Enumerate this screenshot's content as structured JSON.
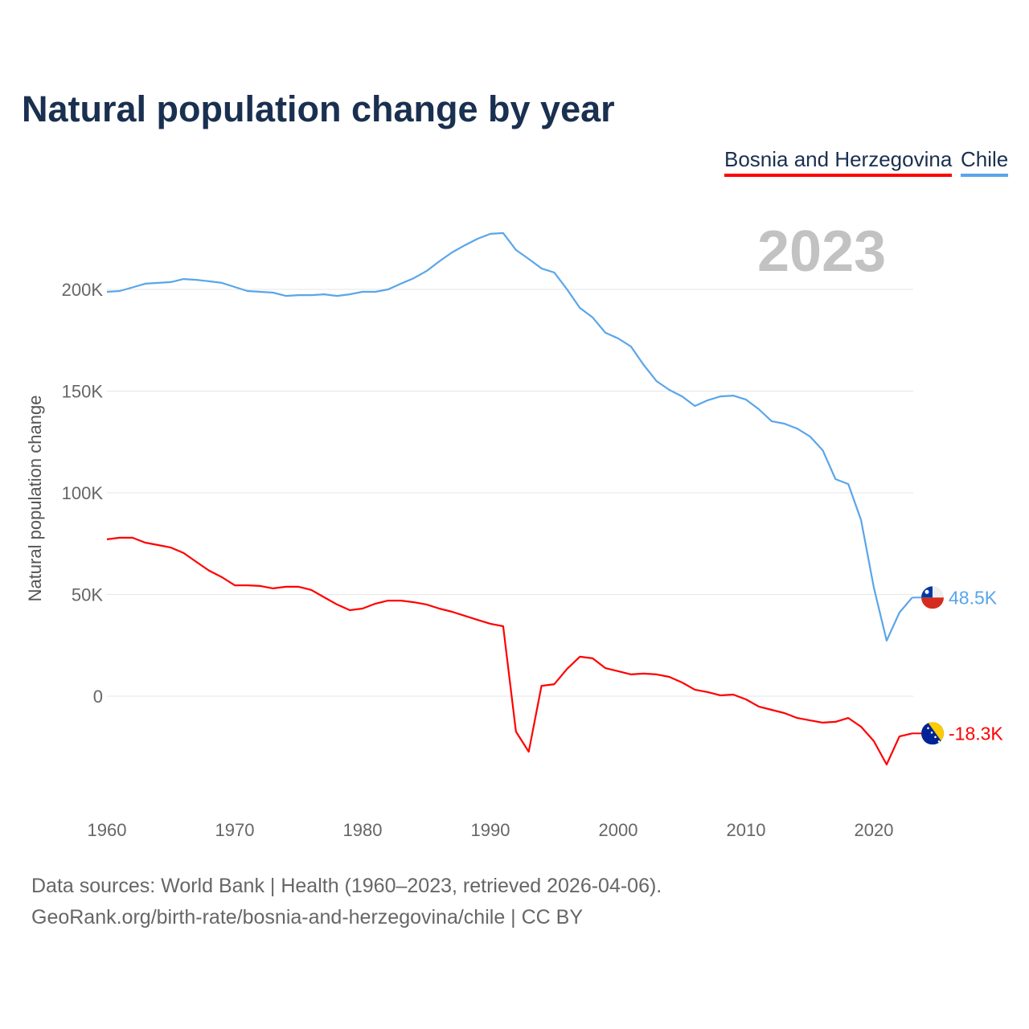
{
  "chart_data": {
    "type": "line",
    "title": "Natural population change by year",
    "ylabel": "Natural population change",
    "xlabel": "",
    "current_year": "2023",
    "x": [
      1960,
      1961,
      1962,
      1963,
      1964,
      1965,
      1966,
      1967,
      1968,
      1969,
      1970,
      1971,
      1972,
      1973,
      1974,
      1975,
      1976,
      1977,
      1978,
      1979,
      1980,
      1981,
      1982,
      1983,
      1984,
      1985,
      1986,
      1987,
      1988,
      1989,
      1990,
      1991,
      1992,
      1993,
      1994,
      1995,
      1996,
      1997,
      1998,
      1999,
      2000,
      2001,
      2002,
      2003,
      2004,
      2005,
      2006,
      2007,
      2008,
      2009,
      2010,
      2011,
      2012,
      2013,
      2014,
      2015,
      2016,
      2017,
      2018,
      2019,
      2020,
      2021,
      2022,
      2023
    ],
    "series": [
      {
        "name": "Bosnia and Herzegovina",
        "color": "#ff0000",
        "end_label": "-18.3K",
        "values": [
          77100,
          77900,
          77900,
          75500,
          74300,
          73100,
          70400,
          66000,
          61700,
          58500,
          54500,
          54500,
          54200,
          53000,
          53800,
          53800,
          52200,
          48600,
          45100,
          42300,
          43100,
          45500,
          47000,
          47000,
          46200,
          45100,
          43100,
          41500,
          39500,
          37500,
          35600,
          34400,
          -17400,
          -27300,
          5100,
          5900,
          13400,
          19400,
          18600,
          13800,
          12300,
          10700,
          11100,
          10700,
          9500,
          6700,
          3200,
          2000,
          400,
          800,
          -1600,
          -5100,
          -6700,
          -8300,
          -10700,
          -11900,
          -13000,
          -12600,
          -10700,
          -15000,
          -22100,
          -33600,
          -19800,
          -18300
        ]
      },
      {
        "name": "Chile",
        "color": "#5aa5ea",
        "end_label": "48.5K",
        "values": [
          198800,
          199200,
          201000,
          202800,
          203200,
          203600,
          205100,
          204700,
          204000,
          203200,
          201200,
          199200,
          198800,
          198400,
          196800,
          197200,
          197200,
          197600,
          196800,
          197600,
          198800,
          198800,
          200000,
          202800,
          205500,
          209000,
          213800,
          218200,
          221700,
          224900,
          227300,
          227700,
          219400,
          215000,
          210300,
          208300,
          200000,
          190900,
          186200,
          178700,
          175900,
          171900,
          162800,
          154900,
          150600,
          147400,
          142700,
          145500,
          147400,
          147800,
          145800,
          141100,
          135200,
          134000,
          131600,
          127700,
          120900,
          106700,
          104300,
          86600,
          53400,
          27300,
          41100,
          48500
        ]
      }
    ],
    "yticks": [
      0,
      50000,
      100000,
      150000,
      200000
    ],
    "ytick_labels": [
      "0",
      "50K",
      "100K",
      "150K",
      "200K"
    ],
    "xticks": [
      1960,
      1970,
      1980,
      1990,
      2000,
      2010,
      2020
    ],
    "xtick_labels": [
      "1960",
      "1970",
      "1980",
      "1990",
      "2000",
      "2010",
      "2020"
    ],
    "ylim": [
      -50000,
      230000
    ],
    "xlim": [
      1960,
      2023
    ],
    "grid": true,
    "legend_placement": "top-right"
  },
  "sources": {
    "line1": "Data sources: World Bank | Health (1960–2023, retrieved 2026-04-06).",
    "line2": "GeoRank.org/birth-rate/bosnia-and-herzegovina/chile | CC BY"
  }
}
